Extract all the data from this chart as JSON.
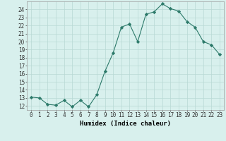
{
  "xlabel": "Humidex (Indice chaleur)",
  "ylabel": "",
  "x": [
    0,
    1,
    2,
    3,
    4,
    5,
    6,
    7,
    8,
    9,
    10,
    11,
    12,
    13,
    14,
    15,
    16,
    17,
    18,
    19,
    20,
    21,
    22,
    23
  ],
  "y": [
    13.1,
    13.0,
    12.2,
    12.1,
    12.7,
    11.9,
    12.7,
    11.9,
    13.4,
    16.3,
    18.6,
    21.8,
    22.2,
    20.0,
    23.4,
    23.7,
    24.7,
    24.1,
    23.8,
    22.5,
    21.8,
    20.0,
    19.6,
    18.4
  ],
  "line_color": "#2d7a6a",
  "marker": "D",
  "marker_size": 2.2,
  "bg_color": "#d8f0ed",
  "grid_color": "#b8d8d4",
  "ylim": [
    11.5,
    25.0
  ],
  "xlim": [
    -0.5,
    23.5
  ],
  "yticks": [
    12,
    13,
    14,
    15,
    16,
    17,
    18,
    19,
    20,
    21,
    22,
    23,
    24
  ],
  "xtick_labels": [
    "0",
    "1",
    "2",
    "3",
    "4",
    "5",
    "6",
    "7",
    "8",
    "9",
    "10",
    "11",
    "12",
    "13",
    "14",
    "15",
    "16",
    "17",
    "18",
    "19",
    "20",
    "21",
    "22",
    "23"
  ],
  "label_fontsize": 6.5,
  "tick_fontsize": 5.5
}
